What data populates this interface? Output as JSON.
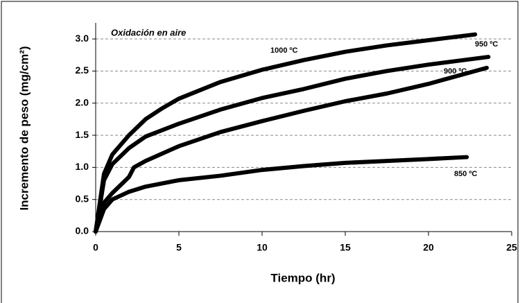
{
  "chart_data": {
    "type": "line",
    "x_label": "Tiempo (hr)",
    "y_label": "Incremento de peso (mg/cm²)",
    "annotations": [
      "Oxidación en aire",
      "1000 ºC",
      "950 ºC",
      "900 ºC",
      "850 ºC"
    ],
    "xlim": [
      0,
      25
    ],
    "xticks": [
      0,
      5,
      10,
      15,
      20,
      25
    ],
    "ylim": [
      0,
      3.25
    ],
    "yticks": [
      {
        "value": 0,
        "label": "0.0"
      },
      0.5,
      {
        "value": 1,
        "label": "1.0"
      },
      1.5,
      {
        "value": 2,
        "label": "2.0"
      },
      2.5,
      {
        "value": 3,
        "label": "3.0"
      }
    ],
    "grid": true,
    "series": [
      {
        "name": "1000 ºC",
        "color": "#000000",
        "x": [
          0,
          0.5,
          1,
          2,
          3,
          4,
          5,
          7.5,
          10,
          12.5,
          15,
          17.5,
          20,
          22.8
        ],
        "values": [
          0,
          0.9,
          1.2,
          1.5,
          1.75,
          1.92,
          2.07,
          2.33,
          2.52,
          2.67,
          2.8,
          2.9,
          2.98,
          3.07
        ]
      },
      {
        "name": "950 ºC",
        "color": "#000000",
        "x": [
          0,
          0.5,
          1,
          2,
          3,
          5,
          7.5,
          10,
          12.5,
          15,
          17.5,
          20,
          23.6
        ],
        "values": [
          0,
          0.8,
          1.05,
          1.3,
          1.48,
          1.68,
          1.9,
          2.08,
          2.22,
          2.38,
          2.5,
          2.6,
          2.72
        ]
      },
      {
        "name": "900 ºC",
        "color": "#000000",
        "x": [
          0,
          0.5,
          1,
          2,
          2.3,
          3,
          5,
          7.5,
          10,
          12.5,
          15,
          17.5,
          20,
          23.5
        ],
        "values": [
          0,
          0.45,
          0.6,
          0.85,
          1.0,
          1.1,
          1.33,
          1.55,
          1.72,
          1.88,
          2.03,
          2.15,
          2.3,
          2.55
        ]
      },
      {
        "name": "850 ºC",
        "color": "#000000",
        "x": [
          0,
          0.5,
          1,
          2,
          3,
          5,
          7.5,
          10,
          12.5,
          15,
          17.5,
          20,
          22.3
        ],
        "values": [
          0,
          0.35,
          0.5,
          0.62,
          0.7,
          0.8,
          0.87,
          0.96,
          1.02,
          1.07,
          1.1,
          1.13,
          1.16
        ]
      }
    ]
  }
}
